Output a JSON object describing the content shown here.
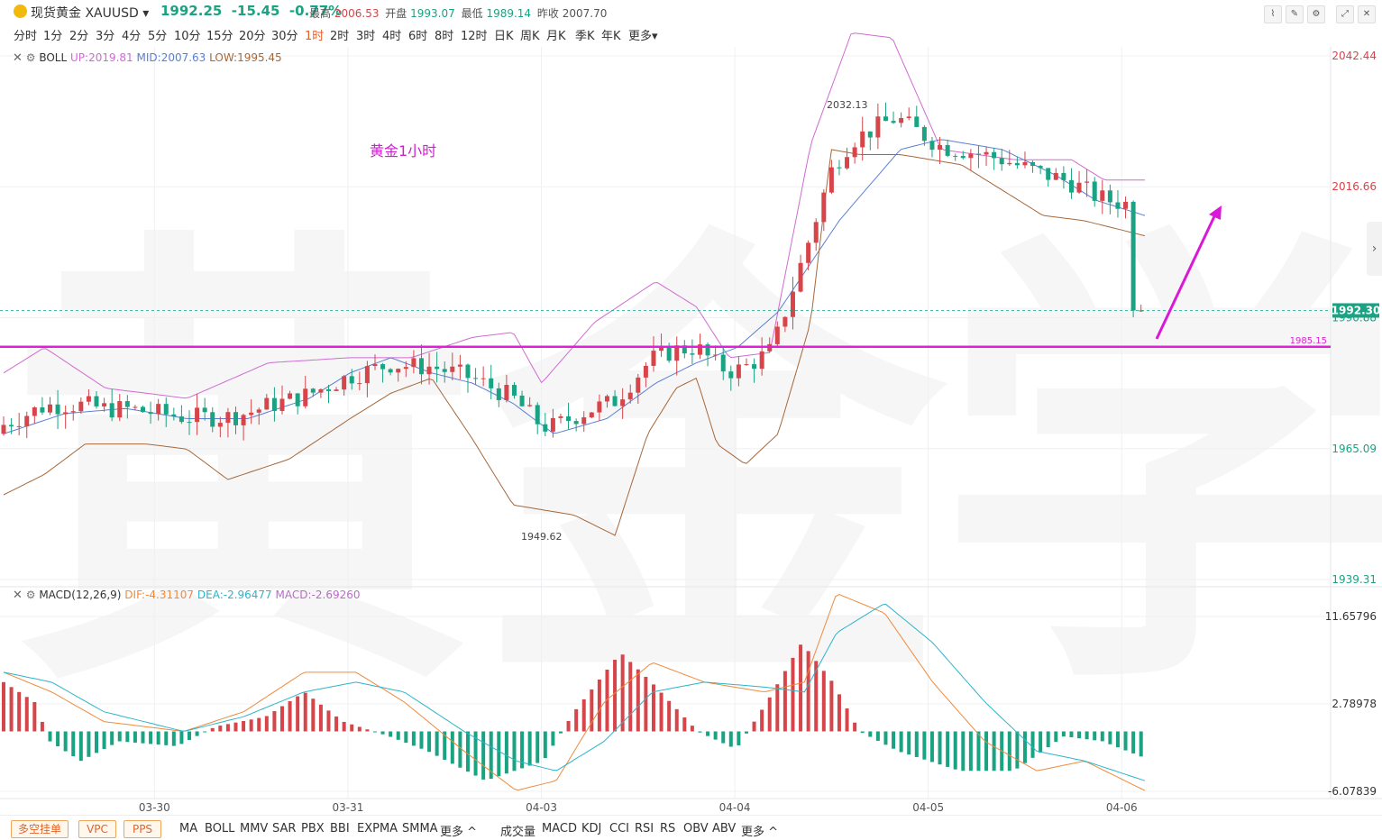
{
  "header": {
    "instrument": "现货黄金 XAUUSD",
    "price": "1992.25",
    "change": "-15.45",
    "change_pct": "-0.77%",
    "high_label": "最高",
    "high": "2006.53",
    "open_label": "开盘",
    "open": "1993.07",
    "low_label": "最低",
    "low": "1989.14",
    "prev_label": "昨收",
    "prev": "2007.70"
  },
  "periods": [
    "分时",
    "1分",
    "2分",
    "3分",
    "4分",
    "5分",
    "10分",
    "15分",
    "20分",
    "30分",
    "1时",
    "2时",
    "3时",
    "4时",
    "6时",
    "8时",
    "12时",
    "日K",
    "周K",
    "月K",
    "季K",
    "年K",
    "更多"
  ],
  "active_period": "1时",
  "boll_legend": {
    "name": "BOLL",
    "up": "UP:2019.81",
    "mid": "MID:2007.63",
    "low": "LOW:1995.45"
  },
  "macd_legend": {
    "name": "MACD(12,26,9)",
    "dif": "DIF:-4.31107",
    "dea": "DEA:-2.96477",
    "macd": "MACD:-2.69260"
  },
  "annotation_title": "黄金1小时",
  "bottom": {
    "tags": [
      "多空挂单",
      "VPC",
      "PPS"
    ],
    "main_indicators": [
      "MA",
      "BOLL",
      "MMV",
      "SAR",
      "PBX",
      "BBI",
      "EXPMA",
      "SMMA",
      "更多 ^"
    ],
    "sub_indicators": [
      "成交量",
      "MACD",
      "KDJ",
      "CCI",
      "RSI",
      "RS",
      "OBV",
      "ABV",
      "更多 ^"
    ]
  },
  "colors": {
    "up": "#d6454a",
    "down": "#1aa383",
    "boll_up": "#d06bd0",
    "boll_mid": "#5b7fd6",
    "boll_low": "#a5683b",
    "dif": "#f08a3c",
    "dea": "#2bb5c9",
    "support": "#e020d8",
    "arrow": "#d918d8"
  },
  "chart_data": [
    {
      "type": "candlestick",
      "title": "",
      "x_ticks": [
        "03-30",
        "03-31",
        "04-03",
        "04-04",
        "04-05",
        "04-06"
      ],
      "y_ticks": [
        2042.44,
        2016.66,
        1990.88,
        1965.09,
        1939.31
      ],
      "ylim": [
        1939.31,
        2042.44
      ],
      "last_price": 1992.3,
      "support_level": 1985.15,
      "marked_high": 2032.13,
      "marked_low": 1949.62,
      "annotations": [
        "黄金1小时"
      ],
      "series": [
        {
          "name": "UP",
          "anchors": [
            [
              0,
              1980
            ],
            [
              10,
              1985
            ],
            [
              25,
              1977
            ],
            [
              45,
              1975
            ],
            [
              65,
              1982
            ],
            [
              85,
              1983
            ],
            [
              100,
              1983
            ],
            [
              115,
              1987
            ],
            [
              125,
              1988
            ],
            [
              132,
              1978
            ],
            [
              145,
              1990
            ],
            [
              160,
              1998
            ],
            [
              170,
              1993
            ],
            [
              178,
              1983
            ],
            [
              188,
              1984
            ],
            [
              198,
              2025
            ],
            [
              208,
              2047
            ],
            [
              218,
              2046
            ],
            [
              230,
              2024
            ],
            [
              248,
              2022
            ],
            [
              262,
              2022
            ],
            [
              270,
              2018
            ],
            [
              280,
              2018
            ]
          ]
        },
        {
          "name": "MID",
          "anchors": [
            [
              0,
              1968
            ],
            [
              15,
              1972
            ],
            [
              30,
              1973
            ],
            [
              45,
              1971
            ],
            [
              60,
              1971
            ],
            [
              75,
              1975
            ],
            [
              85,
              1980
            ],
            [
              95,
              1983
            ],
            [
              105,
              1980
            ],
            [
              115,
              1978
            ],
            [
              125,
              1974
            ],
            [
              135,
              1968
            ],
            [
              148,
              1971
            ],
            [
              160,
              1978
            ],
            [
              170,
              1982
            ],
            [
              180,
              1985
            ],
            [
              190,
              1992
            ],
            [
              205,
              2010
            ],
            [
              220,
              2024
            ],
            [
              230,
              2026
            ],
            [
              245,
              2024
            ],
            [
              258,
              2019
            ],
            [
              268,
              2014
            ],
            [
              280,
              2011
            ]
          ]
        },
        {
          "name": "LOW",
          "anchors": [
            [
              0,
              1956
            ],
            [
              10,
              1960
            ],
            [
              20,
              1966
            ],
            [
              35,
              1966
            ],
            [
              45,
              1965
            ],
            [
              55,
              1959
            ],
            [
              70,
              1963
            ],
            [
              85,
              1971
            ],
            [
              95,
              1976
            ],
            [
              105,
              1979
            ],
            [
              115,
              1967
            ],
            [
              125,
              1954
            ],
            [
              140,
              1952
            ],
            [
              150,
              1948
            ],
            [
              158,
              1968
            ],
            [
              165,
              1977
            ],
            [
              170,
              1979
            ],
            [
              175,
              1966
            ],
            [
              182,
              1962
            ],
            [
              190,
              1968
            ],
            [
              198,
              1990
            ],
            [
              203,
              2024
            ],
            [
              210,
              2023
            ],
            [
              220,
              2023
            ],
            [
              235,
              2021
            ],
            [
              245,
              2016
            ],
            [
              255,
              2011
            ],
            [
              265,
              2010
            ],
            [
              280,
              2007
            ]
          ]
        }
      ]
    },
    {
      "type": "bar",
      "title": "",
      "y_ticks": [
        11.65796,
        2.78978,
        -6.07839
      ],
      "ylim": [
        -6.07839,
        11.65796
      ],
      "series": [
        {
          "name": "MACD",
          "anchors": [
            [
              0,
              5
            ],
            [
              8,
              3
            ],
            [
              12,
              -1
            ],
            [
              20,
              -3
            ],
            [
              30,
              -1
            ],
            [
              45,
              -1.5
            ],
            [
              55,
              0.5
            ],
            [
              68,
              1.5
            ],
            [
              78,
              4
            ],
            [
              88,
              1
            ],
            [
              100,
              -0.5
            ],
            [
              110,
              -2
            ],
            [
              125,
              -5
            ],
            [
              140,
              -3
            ],
            [
              148,
              2
            ],
            [
              160,
              8
            ],
            [
              168,
              5
            ],
            [
              180,
              0
            ],
            [
              190,
              -1.8
            ],
            [
              198,
              3
            ],
            [
              207,
              9
            ],
            [
              215,
              5
            ],
            [
              222,
              0
            ],
            [
              232,
              -2
            ],
            [
              248,
              -4
            ],
            [
              262,
              -4
            ],
            [
              275,
              -0.5
            ],
            [
              285,
              -1
            ],
            [
              296,
              -2.7
            ]
          ]
        },
        {
          "name": "DIF",
          "anchors": [
            [
              0,
              6
            ],
            [
              12,
              4
            ],
            [
              25,
              1
            ],
            [
              45,
              0
            ],
            [
              60,
              2
            ],
            [
              75,
              6
            ],
            [
              88,
              6
            ],
            [
              100,
              3
            ],
            [
              115,
              -2
            ],
            [
              128,
              -6
            ],
            [
              138,
              -5
            ],
            [
              150,
              3
            ],
            [
              162,
              7
            ],
            [
              175,
              5
            ],
            [
              190,
              4
            ],
            [
              200,
              5
            ],
            [
              208,
              14
            ],
            [
              220,
              12
            ],
            [
              232,
              5
            ],
            [
              245,
              -1
            ],
            [
              258,
              -4
            ],
            [
              270,
              -3
            ],
            [
              285,
              -6
            ]
          ]
        },
        {
          "name": "DEA",
          "anchors": [
            [
              0,
              6
            ],
            [
              12,
              5
            ],
            [
              25,
              2
            ],
            [
              45,
              0
            ],
            [
              60,
              1.5
            ],
            [
              75,
              4
            ],
            [
              88,
              5
            ],
            [
              100,
              4
            ],
            [
              115,
              0
            ],
            [
              128,
              -3
            ],
            [
              138,
              -4
            ],
            [
              150,
              -1
            ],
            [
              162,
              4
            ],
            [
              175,
              5
            ],
            [
              190,
              4.5
            ],
            [
              200,
              4
            ],
            [
              208,
              10
            ],
            [
              220,
              13
            ],
            [
              232,
              9
            ],
            [
              245,
              3
            ],
            [
              258,
              -2
            ],
            [
              270,
              -3
            ],
            [
              285,
              -5
            ]
          ]
        }
      ]
    }
  ]
}
